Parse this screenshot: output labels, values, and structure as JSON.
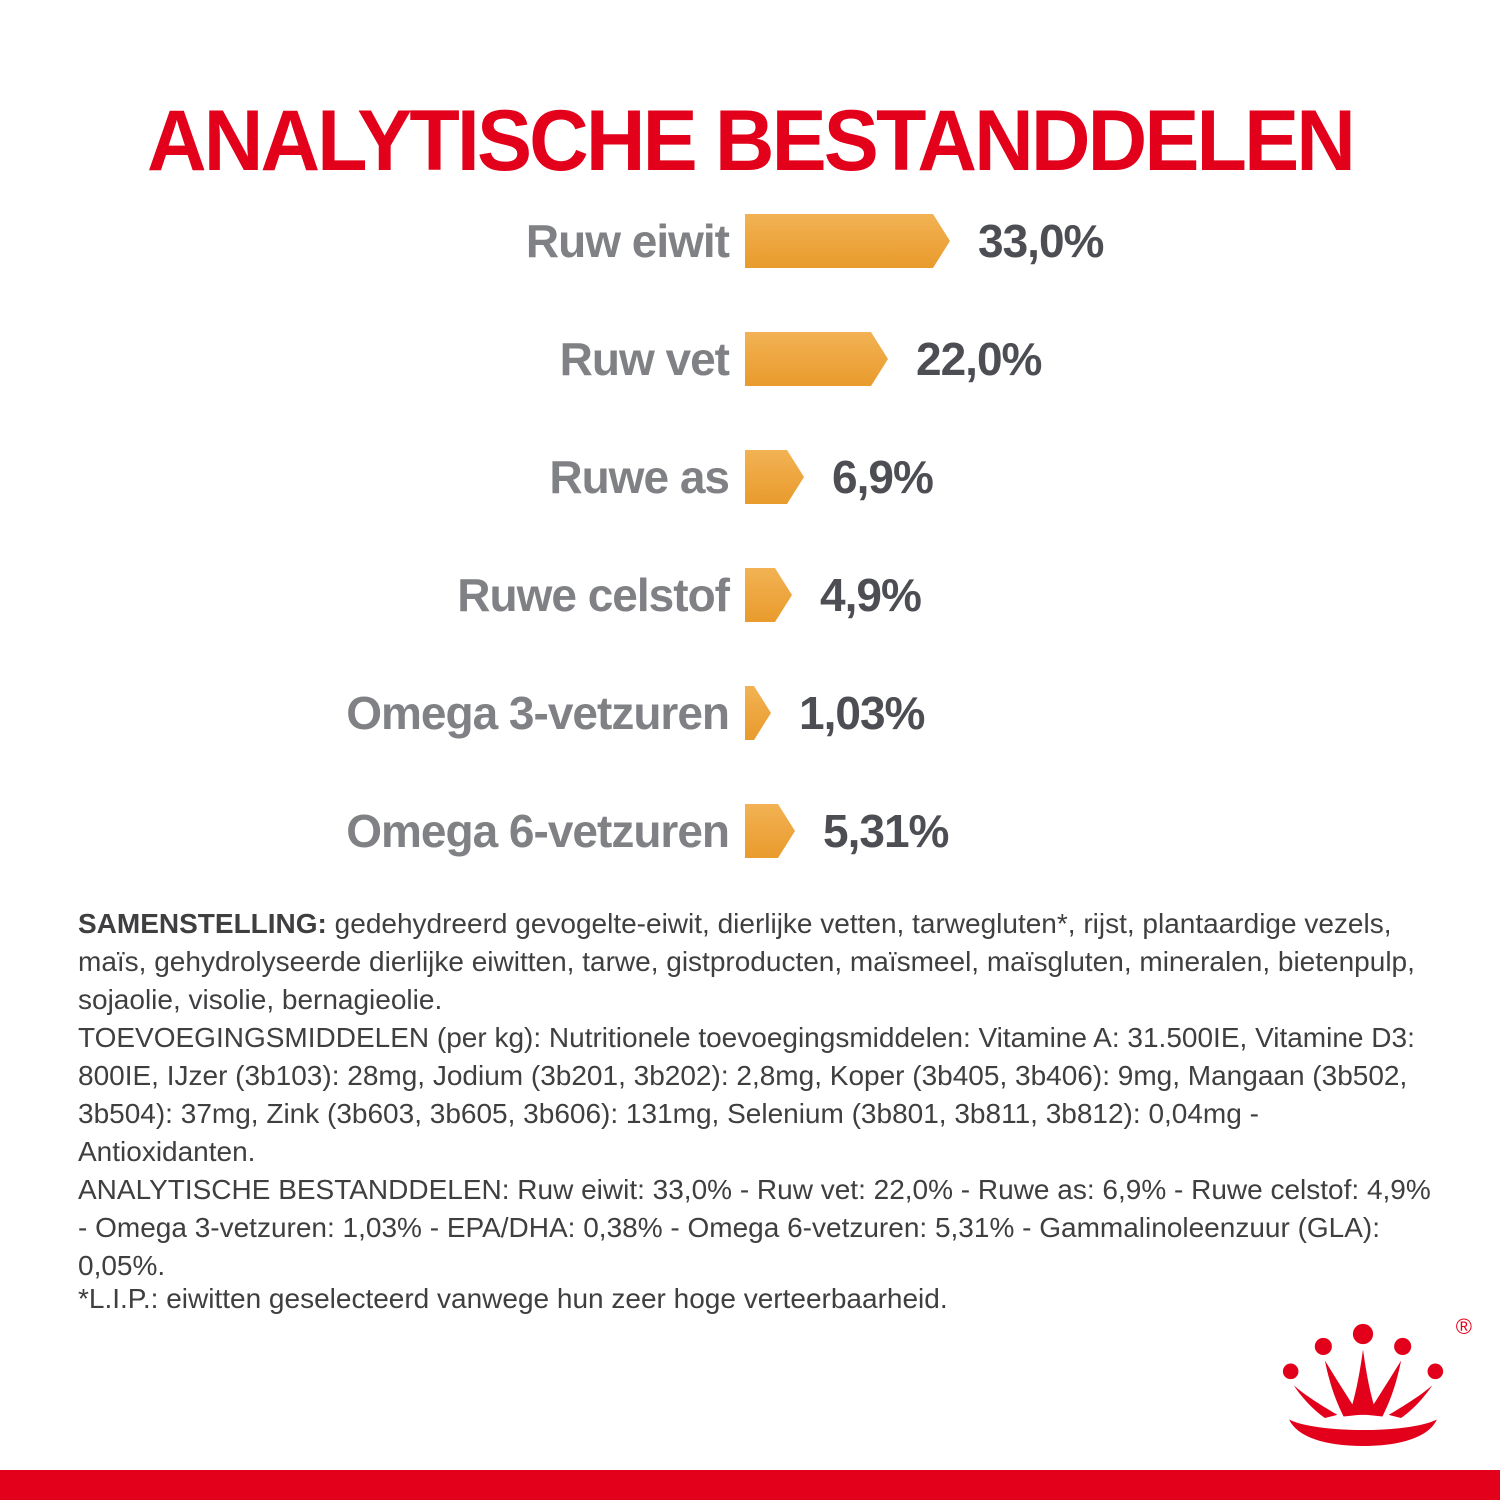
{
  "title": "ANALYTISCHE BESTANDDELEN",
  "chart_data": {
    "type": "bar",
    "orientation": "horizontal",
    "title": "ANALYTISCHE BESTANDDELEN",
    "categories": [
      "Ruw eiwit",
      "Ruw vet",
      "Ruwe as",
      "Ruwe celstof",
      "Omega 3-vetzuren",
      "Omega 6-vetzuren"
    ],
    "values": [
      33.0,
      22.0,
      6.9,
      4.9,
      1.03,
      5.31
    ],
    "value_labels": [
      "33,0%",
      "22,0%",
      "6,9%",
      "4,9%",
      "1,03%",
      "5,31%"
    ],
    "unit": "%",
    "xlim": [
      0,
      35
    ],
    "bar_shape": "right-pointing-arrow",
    "grid": false,
    "legend": false
  },
  "colors": {
    "brand_red": "#E2001A",
    "bar_orange": "#E99B2C",
    "bar_orange_light": "#F2B254",
    "label_gray": "#808184",
    "value_gray": "#4D4E53",
    "body_text": "#3F3F41"
  },
  "composition": {
    "heading": "SAMENSTELLING:",
    "body": "gedehydreerd gevogelte-eiwit, dierlijke vetten, tarwegluten*, rijst, plantaardige vezels, maïs, gehydrolyseerde dierlijke eiwitten, tarwe, gistproducten, maïsmeel, maïsgluten, mineralen, bietenpulp, sojaolie, visolie, bernagieolie."
  },
  "additives_text": "TOEVOEGINGSMIDDELEN (per kg): Nutritionele toevoegingsmiddelen: Vitamine A: 31.500IE, Vitamine D3: 800IE, IJzer (3b103): 28mg, Jodium (3b201, 3b202): 2,8mg, Koper (3b405, 3b406): 9mg, Mangaan (3b502, 3b504): 37mg, Zink (3b603, 3b605, 3b606): 131mg, Selenium (3b801, 3b811, 3b812): 0,04mg - Antioxidanten.",
  "analytical_text": "ANALYTISCHE BESTANDDELEN: Ruw eiwit: 33,0% - Ruw vet: 22,0% - Ruwe as: 6,9% - Ruwe celstof: 4,9% - Omega 3-vetzuren: 1,03% - EPA/DHA: 0,38% - Omega 6-vetzuren: 5,31% - Gammalinoleenzuur (GLA): 0,05%.",
  "footnote": "*L.I.P.: eiwitten geselecteerd vanwege hun zeer hoge verteerbaarheid.",
  "logo": {
    "icon": "royal-canin-crown-icon",
    "registered_mark": "®"
  }
}
